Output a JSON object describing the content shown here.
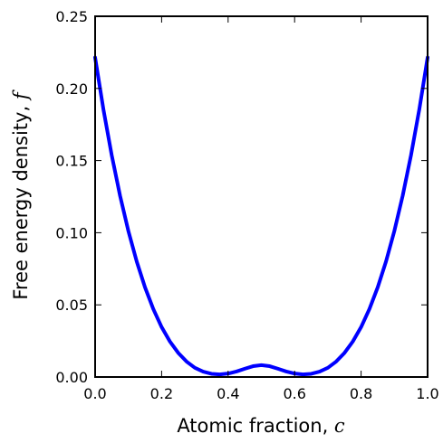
{
  "chart_data": {
    "type": "line",
    "title": "",
    "xlabel": "Atomic fraction, ",
    "xlabel_var": "c",
    "ylabel": "Free energy density, ",
    "ylabel_var": "f",
    "xlim": [
      0.0,
      1.0
    ],
    "ylim": [
      0.0,
      0.25
    ],
    "x_ticks": [
      0.0,
      0.2,
      0.4,
      0.6,
      0.8,
      1.0
    ],
    "x_tick_labels": [
      "0.0",
      "0.2",
      "0.4",
      "0.6",
      "0.8",
      "1.0"
    ],
    "y_ticks": [
      0.0,
      0.05,
      0.1,
      0.15,
      0.2,
      0.25
    ],
    "y_tick_labels": [
      "0.00",
      "0.05",
      "0.10",
      "0.15",
      "0.20",
      "0.25"
    ],
    "grid": false,
    "legend": "none",
    "series": [
      {
        "color": "#0000ff",
        "x": [
          0.0,
          0.025,
          0.05,
          0.075,
          0.1,
          0.125,
          0.15,
          0.175,
          0.2,
          0.225,
          0.25,
          0.275,
          0.3,
          0.325,
          0.35,
          0.375,
          0.4,
          0.425,
          0.45,
          0.475,
          0.5,
          0.525,
          0.55,
          0.575,
          0.6,
          0.625,
          0.65,
          0.675,
          0.7,
          0.725,
          0.75,
          0.775,
          0.8,
          0.825,
          0.85,
          0.875,
          0.9,
          0.925,
          0.95,
          0.975,
          1.0
        ],
        "y": [
          0.2214,
          0.1854,
          0.1536,
          0.1256,
          0.1012,
          0.0801,
          0.0622,
          0.0471,
          0.0346,
          0.0246,
          0.0167,
          0.0107,
          0.0064,
          0.0037,
          0.0022,
          0.0018,
          0.0024,
          0.0038,
          0.0057,
          0.0075,
          0.0082,
          0.0075,
          0.0057,
          0.0038,
          0.0024,
          0.0018,
          0.0022,
          0.0037,
          0.0064,
          0.0107,
          0.0167,
          0.0246,
          0.0346,
          0.0471,
          0.0622,
          0.0801,
          0.1012,
          0.1256,
          0.1536,
          0.1854,
          0.2214
        ]
      }
    ]
  }
}
